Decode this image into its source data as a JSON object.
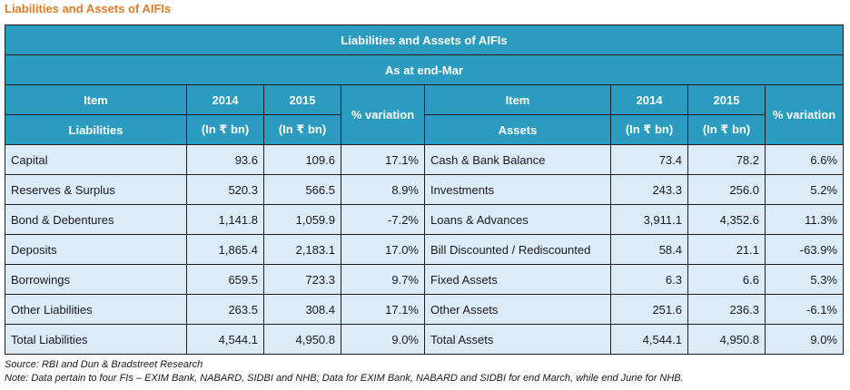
{
  "heading": "Liabilities and Assets of AIFIs",
  "table": {
    "title": "Liabilities and Assets of AIFIs",
    "subtitle": "As at end-Mar",
    "header_top": {
      "item": "Item",
      "y2014": "2014",
      "y2015": "2015",
      "variation": "% variation",
      "item_right": "Item",
      "y2014_right": "2014",
      "y2015_right": "2015",
      "variation_right": "% variation"
    },
    "header_bottom": {
      "liabilities": "Liabilities",
      "unit_left_2014": "(In ₹ bn)",
      "unit_left_2015": "(In ₹ bn)",
      "assets": "Assets",
      "unit_right_2014": "(In ₹ bn)",
      "unit_right_2015": "(In ₹ bn)"
    },
    "rows": [
      {
        "liability": "Capital",
        "l2014": "93.6",
        "l2015": "109.6",
        "lvar": "17.1%",
        "asset": "Cash & Bank Balance",
        "a2014": "73.4",
        "a2015": "78.2",
        "avar": "6.6%"
      },
      {
        "liability": "Reserves & Surplus",
        "l2014": "520.3",
        "l2015": "566.5",
        "lvar": "8.9%",
        "asset": "Investments",
        "a2014": "243.3",
        "a2015": "256.0",
        "avar": "5.2%"
      },
      {
        "liability": "Bond & Debentures",
        "l2014": "1,141.8",
        "l2015": "1,059.9",
        "lvar": "-7.2%",
        "asset": "Loans & Advances",
        "a2014": "3,911.1",
        "a2015": "4,352.6",
        "avar": "11.3%"
      },
      {
        "liability": "Deposits",
        "l2014": "1,865.4",
        "l2015": "2,183.1",
        "lvar": "17.0%",
        "asset": "Bill Discounted / Rediscounted",
        "a2014": "58.4",
        "a2015": "21.1",
        "avar": "-63.9%"
      },
      {
        "liability": "Borrowings",
        "l2014": "659.5",
        "l2015": "723.3",
        "lvar": "9.7%",
        "asset": "Fixed Assets",
        "a2014": "6.3",
        "a2015": "6.6",
        "avar": "5.3%"
      },
      {
        "liability": "Other Liabilities",
        "l2014": "263.5",
        "l2015": "308.4",
        "lvar": "17.1%",
        "asset": "Other Assets",
        "a2014": "251.6",
        "a2015": "236.3",
        "avar": "-6.1%"
      },
      {
        "liability": "Total Liabilities",
        "l2014": "4,544.1",
        "l2015": "4,950.8",
        "lvar": "9.0%",
        "asset": "Total Assets",
        "a2014": "4,544.1",
        "a2015": "4,950.8",
        "avar": "9.0%"
      }
    ]
  },
  "source": "Source: RBI and Dun & Bradstreet Research",
  "note": "Note: Data pertain to four FIs – EXIM Bank, NABARD, SIDBI and NHB; Data for EXIM Bank, NABARD and SIDBI for end March, while end June for NHB.",
  "colors": {
    "heading": "#e07a26",
    "header_bg": "#2c9bc0",
    "cell_bg": "#dcebf8",
    "border": "#1d1d1d"
  }
}
